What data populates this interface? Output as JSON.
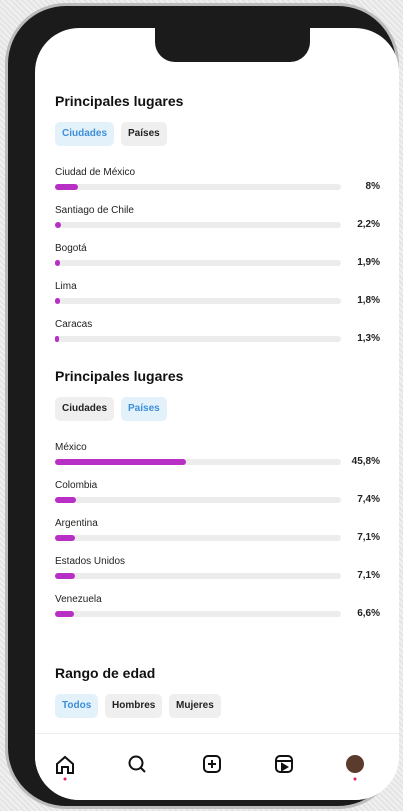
{
  "sections": [
    {
      "title": "Principales lugares",
      "tabs": [
        "Ciudades",
        "Países"
      ],
      "active_tab": 0,
      "xlim": [
        0,
        100
      ],
      "items": [
        {
          "label": "Ciudad de México",
          "value": 8,
          "value_label": "8%"
        },
        {
          "label": "Santiago de Chile",
          "value": 2.2,
          "value_label": "2,2%"
        },
        {
          "label": "Bogotá",
          "value": 1.9,
          "value_label": "1,9%"
        },
        {
          "label": "Lima",
          "value": 1.8,
          "value_label": "1,8%"
        },
        {
          "label": "Caracas",
          "value": 1.3,
          "value_label": "1,3%"
        }
      ]
    },
    {
      "title": "Principales lugares",
      "tabs": [
        "Ciudades",
        "Países"
      ],
      "active_tab": 1,
      "xlim": [
        0,
        100
      ],
      "items": [
        {
          "label": "México",
          "value": 45.8,
          "value_label": "45,8%"
        },
        {
          "label": "Colombia",
          "value": 7.4,
          "value_label": "7,4%"
        },
        {
          "label": "Argentina",
          "value": 7.1,
          "value_label": "7,1%"
        },
        {
          "label": "Estados Unidos",
          "value": 7.1,
          "value_label": "7,1%"
        },
        {
          "label": "Venezuela",
          "value": 6.6,
          "value_label": "6,6%"
        }
      ]
    },
    {
      "title": "Rango de edad",
      "tabs": [
        "Todos",
        "Hombres",
        "Mujeres"
      ],
      "active_tab": 0,
      "items": []
    }
  ]
}
